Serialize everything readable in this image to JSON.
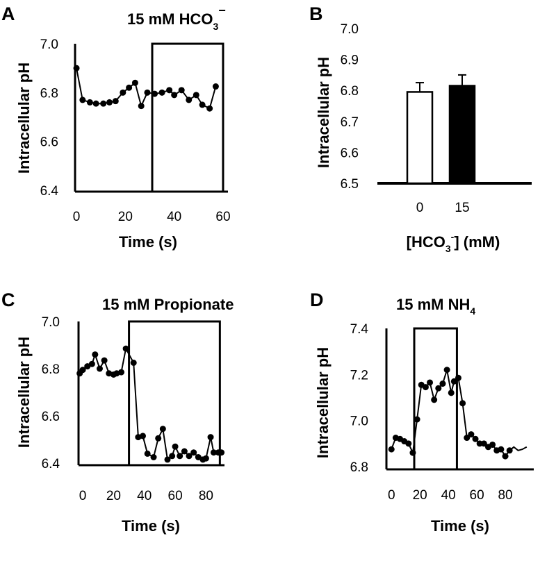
{
  "chart_data": [
    {
      "id": "A",
      "type": "line",
      "panel_label": "A",
      "title": "15 mM HCO",
      "title_sub": "3",
      "title_sup": "−",
      "xlabel": "Time (s)",
      "ylabel": "Intracellular pH",
      "xlim": [
        -2,
        62
      ],
      "ylim": [
        6.4,
        7.0
      ],
      "xticks": [
        "0",
        "20",
        "40",
        "60"
      ],
      "yticks": [
        "6.4",
        "6.6",
        "6.8",
        "7.0"
      ],
      "treatment_window": [
        31,
        60
      ],
      "series": [
        {
          "name": "pH",
          "x": [
            0,
            2.5,
            5.5,
            8,
            11,
            13.5,
            16,
            19,
            21.5,
            24,
            26.5,
            29,
            32,
            35,
            38,
            40,
            43,
            46,
            49,
            51.5,
            54.5,
            57
          ],
          "values": [
            6.9,
            6.77,
            6.76,
            6.755,
            6.755,
            6.76,
            6.765,
            6.8,
            6.82,
            6.84,
            6.745,
            6.8,
            6.795,
            6.8,
            6.81,
            6.79,
            6.81,
            6.77,
            6.79,
            6.75,
            6.735,
            6.825
          ]
        }
      ]
    },
    {
      "id": "B",
      "type": "bar",
      "panel_label": "B",
      "title": "",
      "xlabel_pre": "[HCO",
      "xlabel_sub": "3",
      "xlabel_sup": "-",
      "xlabel_post": "] (mM)",
      "ylabel": "Intracellular pH",
      "ylim": [
        6.5,
        7.0
      ],
      "yticks": [
        "6.5",
        "6.6",
        "6.7",
        "6.8",
        "6.9",
        "7.0"
      ],
      "categories": [
        "0",
        "15"
      ],
      "values": [
        6.795,
        6.815
      ],
      "errors": [
        0.03,
        0.035
      ],
      "fill_colors": [
        "#ffffff",
        "#000000"
      ]
    },
    {
      "id": "C",
      "type": "line",
      "panel_label": "C",
      "title": "15 mM Propionate",
      "xlabel": "Time (s)",
      "ylabel": "Intracellular pH",
      "xlim": [
        -5,
        92
      ],
      "ylim": [
        6.4,
        7.0
      ],
      "xticks": [
        "0",
        "20",
        "40",
        "60",
        "80"
      ],
      "yticks": [
        "6.4",
        "6.6",
        "6.8",
        "7.0"
      ],
      "treatment_window": [
        30,
        89
      ],
      "series": [
        {
          "name": "pH",
          "x": [
            -2,
            0,
            3,
            6,
            8,
            11,
            14,
            17,
            20,
            22,
            25,
            28,
            33,
            36,
            39,
            42,
            46,
            49,
            52,
            55,
            58,
            60,
            63,
            66,
            69,
            72,
            75,
            78,
            80,
            83,
            85,
            88,
            90
          ],
          "values": [
            6.78,
            6.795,
            6.81,
            6.82,
            6.86,
            6.8,
            6.835,
            6.78,
            6.775,
            6.78,
            6.785,
            6.885,
            6.825,
            6.51,
            6.515,
            6.44,
            6.425,
            6.505,
            6.545,
            6.415,
            6.43,
            6.47,
            6.43,
            6.45,
            6.43,
            6.445,
            6.425,
            6.415,
            6.42,
            6.51,
            6.445,
            6.445,
            6.445
          ]
        }
      ]
    },
    {
      "id": "D",
      "type": "line",
      "panel_label": "D",
      "title": "15 mM NH",
      "title_sub": "4",
      "xlabel": "Time (s)",
      "ylabel": "Intracellular pH",
      "xlim": [
        -5,
        100
      ],
      "ylim": [
        6.8,
        7.4
      ],
      "xticks": [
        "0",
        "20",
        "40",
        "60",
        "80"
      ],
      "yticks": [
        "6.8",
        "7.0",
        "7.2",
        "7.4"
      ],
      "treatment_window": [
        16,
        46
      ],
      "series": [
        {
          "name": "pH",
          "x": [
            0,
            3,
            6,
            9,
            12,
            15,
            18,
            21,
            24,
            27,
            30,
            33,
            36,
            39,
            42,
            44,
            47,
            50,
            53,
            56,
            59,
            62,
            65,
            68,
            71,
            74,
            77,
            80,
            83,
            86,
            89,
            92,
            95
          ],
          "values": [
            6.875,
            6.925,
            6.92,
            6.91,
            6.9,
            6.86,
            7.005,
            7.155,
            7.145,
            7.165,
            7.09,
            7.14,
            7.16,
            7.22,
            7.12,
            7.17,
            7.185,
            7.075,
            6.925,
            6.94,
            6.92,
            6.9,
            6.9,
            6.885,
            6.895,
            6.87,
            6.875,
            6.845,
            6.87,
            6.885,
            6.87,
            6.875,
            6.885
          ]
        }
      ]
    }
  ]
}
